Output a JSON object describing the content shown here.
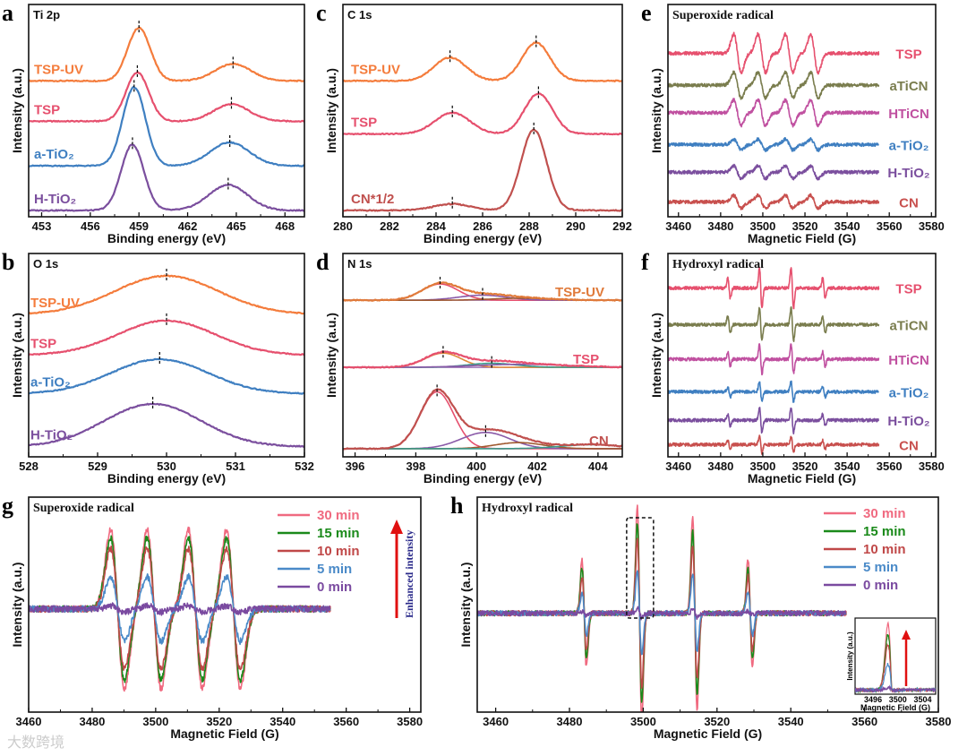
{
  "chart_data": [
    {
      "id": "a",
      "panel_label": "a",
      "type": "line",
      "title": "Ti 2p",
      "xlabel": "Binding energy (eV)",
      "ylabel": "Intensity (a.u.)",
      "xlim": [
        452.2,
        469.2
      ],
      "ylim": [
        0,
        100
      ],
      "xticks": [
        453,
        456,
        459,
        462,
        465,
        468
      ],
      "model": "xps",
      "series": [
        {
          "name": "TSP-UV",
          "color": "#f47c3c",
          "offset": 64,
          "peaks": [
            [
              459.0,
              25,
              0.7
            ],
            [
              464.8,
              8,
              1.1
            ]
          ]
        },
        {
          "name": "TSP",
          "color": "#e6506e",
          "offset": 45,
          "peaks": [
            [
              458.9,
              23,
              0.7
            ],
            [
              464.7,
              8,
              1.1
            ]
          ]
        },
        {
          "name": "a-TiO₂",
          "color": "#3f7fc1",
          "offset": 24,
          "peaks": [
            [
              458.7,
              37,
              0.7
            ],
            [
              464.6,
              11,
              1.2
            ]
          ]
        },
        {
          "name": "H-TiO₂",
          "color": "#7b4f9e",
          "offset": 3,
          "peaks": [
            [
              458.6,
              31,
              0.7
            ],
            [
              464.5,
              12,
              1.2
            ]
          ]
        }
      ]
    },
    {
      "id": "b",
      "panel_label": "b",
      "type": "line",
      "title": "O 1s",
      "xlabel": "Binding energy (eV)",
      "ylabel": "Intensity (a.u.)",
      "xlim": [
        528,
        532
      ],
      "ylim": [
        0,
        100
      ],
      "xticks": [
        528,
        529,
        530,
        531,
        532
      ],
      "model": "xps",
      "series": [
        {
          "name": "TSP-UV",
          "color": "#f47c3c",
          "offset": 70,
          "peaks": [
            [
              530.0,
              19,
              0.75
            ]
          ]
        },
        {
          "name": "TSP",
          "color": "#e6506e",
          "offset": 50,
          "peaks": [
            [
              530.0,
              17,
              0.7
            ]
          ]
        },
        {
          "name": "a-TiO₂",
          "color": "#3f7fc1",
          "offset": 31,
          "peaks": [
            [
              529.9,
              17,
              0.7
            ]
          ]
        },
        {
          "name": "H-TiO₂",
          "color": "#7b4f9e",
          "offset": 5,
          "peaks": [
            [
              529.8,
              21,
              0.7
            ]
          ]
        }
      ]
    },
    {
      "id": "c",
      "panel_label": "c",
      "type": "line",
      "title": "C 1s",
      "xlabel": "Binding energy (eV)",
      "ylabel": "Intensity (a.u.)",
      "xlim": [
        280,
        292
      ],
      "ylim": [
        0,
        100
      ],
      "xticks": [
        280,
        282,
        284,
        286,
        288,
        290,
        292
      ],
      "model": "xps",
      "series": [
        {
          "name": "TSP-UV",
          "color": "#f47c3c",
          "offset": 64,
          "peaks": [
            [
              284.6,
              11,
              0.7
            ],
            [
              288.3,
              18,
              0.6
            ]
          ]
        },
        {
          "name": "TSP",
          "color": "#e6506e",
          "offset": 39,
          "peaks": [
            [
              284.7,
              10,
              0.75
            ],
            [
              288.4,
              19,
              0.6
            ]
          ]
        },
        {
          "name": "CN*1/2",
          "color": "#c0504e",
          "offset": 3,
          "peaks": [
            [
              284.7,
              3,
              0.8
            ],
            [
              288.2,
              38,
              0.55
            ]
          ]
        }
      ]
    },
    {
      "id": "d",
      "panel_label": "d",
      "type": "line",
      "title": "N 1s",
      "xlabel": "Binding energy (eV)",
      "ylabel": "Intensity (a.u.)",
      "xlim": [
        395.6,
        404.8
      ],
      "ylim": [
        0,
        100
      ],
      "xticks": [
        396,
        398,
        400,
        402,
        404
      ],
      "model": "xps",
      "series": [
        {
          "name": "TSP-UV",
          "color": "#e07a3a",
          "offset": 77,
          "peaks": [
            [
              398.8,
              8,
              0.6
            ],
            [
              400.2,
              2.5,
              0.8
            ],
            [
              401.5,
              1,
              1
            ]
          ],
          "component_colors": [
            "#e6506e",
            "#8a5aa8",
            "#a05a30"
          ]
        },
        {
          "name": "TSP",
          "color": "#e6506e",
          "offset": 44,
          "peaks": [
            [
              398.9,
              7,
              0.6
            ],
            [
              400.5,
              2,
              0.8
            ],
            [
              401.5,
              1.5,
              1.5
            ]
          ],
          "component_colors": [
            "#e08a3a",
            "#3a9a8a",
            "#8a5aa8"
          ]
        },
        {
          "name": "CN",
          "color": "#c0504e",
          "offset": 4,
          "peaks": [
            [
              398.7,
              28,
              0.55
            ],
            [
              400.3,
              8,
              0.8
            ],
            [
              401.4,
              3,
              0.8
            ],
            [
              403.8,
              2,
              1
            ]
          ],
          "component_colors": [
            "#e6506e",
            "#8a5aa8",
            "#a05a30",
            "#3a9a8a"
          ]
        }
      ]
    },
    {
      "id": "e",
      "panel_label": "e",
      "type": "line",
      "title": "Superoxide radical",
      "xlabel": "Magnetic Field (G)",
      "ylabel": "Intensity (a.u.)",
      "xlim": [
        3455,
        3582
      ],
      "ylim": [
        0,
        100
      ],
      "xticks": [
        3460,
        3480,
        3500,
        3520,
        3540,
        3560,
        3580
      ],
      "model": "epr",
      "lines": [
        3488,
        3499.5,
        3512.5,
        3524.5
      ],
      "ratios": [
        1,
        1,
        1,
        1
      ],
      "width": 1.8,
      "data_range": [
        3455,
        3555
      ],
      "series": [
        {
          "name": "TSP",
          "color": "#e6506e",
          "offset": 77,
          "amp": 9
        },
        {
          "name": "aTiCN",
          "color": "#7a7d4e",
          "offset": 62,
          "amp": 6
        },
        {
          "name": "HTiCN",
          "color": "#c050a0",
          "offset": 49,
          "amp": 6
        },
        {
          "name": "a-TiO₂",
          "color": "#3f7fc1",
          "offset": 34,
          "amp": 2.5
        },
        {
          "name": "H-TiO₂",
          "color": "#7b4f9e",
          "offset": 21,
          "amp": 3
        },
        {
          "name": "CN",
          "color": "#c8504e",
          "offset": 7,
          "amp": 3
        }
      ]
    },
    {
      "id": "f",
      "panel_label": "f",
      "type": "line",
      "title": "Hydroxyl radical",
      "xlabel": "Magnetic Field (G)",
      "ylabel": "Intensity (a.u.)",
      "xlim": [
        3455,
        3582
      ],
      "ylim": [
        0,
        100
      ],
      "xticks": [
        3460,
        3480,
        3500,
        3520,
        3540,
        3560,
        3580
      ],
      "model": "epr",
      "lines": [
        3484,
        3499,
        3514,
        3529
      ],
      "ratios": [
        1,
        2,
        2,
        1
      ],
      "width": 0.6,
      "data_range": [
        3455,
        3555
      ],
      "series": [
        {
          "name": "TSP",
          "color": "#e6506e",
          "offset": 83,
          "amp": 5
        },
        {
          "name": "aTiCN",
          "color": "#7a7d4e",
          "offset": 65,
          "amp": 4
        },
        {
          "name": "HTiCN",
          "color": "#c050a0",
          "offset": 48,
          "amp": 3.5
        },
        {
          "name": "a-TiO₂",
          "color": "#3f7fc1",
          "offset": 32,
          "amp": 2.5
        },
        {
          "name": "H-TiO₂",
          "color": "#7b4f9e",
          "offset": 18,
          "amp": 3
        },
        {
          "name": "CN",
          "color": "#c8504e",
          "offset": 6,
          "amp": 2
        }
      ]
    },
    {
      "id": "g",
      "panel_label": "g",
      "type": "line",
      "title": "Superoxide radical",
      "xlabel": "Magnetic Field (G)",
      "ylabel": "Intensity (a.u.)",
      "xlim": [
        3460,
        3583.5
      ],
      "ylim": [
        0,
        100
      ],
      "xticks": [
        3460,
        3480,
        3500,
        3520,
        3540,
        3560,
        3580
      ],
      "model": "epr",
      "lines": [
        3488,
        3499.5,
        3512.5,
        3524.5
      ],
      "ratios": [
        1,
        1,
        1,
        1
      ],
      "width": 2.2,
      "data_range": [
        3455,
        3555
      ],
      "annotation": "Enhanced intensity",
      "legend": "top-right",
      "series": [
        {
          "name": "30 min",
          "color": "#f06a80",
          "offset": 48,
          "amp": 37
        },
        {
          "name": "15 min",
          "color": "#1a8a1a",
          "offset": 48,
          "amp": 33
        },
        {
          "name": "10 min",
          "color": "#c04848",
          "offset": 48,
          "amp": 28
        },
        {
          "name": "5 min",
          "color": "#4a8ac8",
          "offset": 48,
          "amp": 15
        },
        {
          "name": "0 min",
          "color": "#7a4aa0",
          "offset": 48,
          "amp": 1.5
        }
      ]
    },
    {
      "id": "h",
      "panel_label": "h",
      "type": "line",
      "title": "Hydroxyl radical",
      "xlabel": "Magnetic Field (G)",
      "ylabel": "Intensity (a.u.)",
      "xlim": [
        3455,
        3580
      ],
      "ylim": [
        0,
        100
      ],
      "xticks": [
        3460,
        3480,
        3500,
        3520,
        3540,
        3560,
        3580
      ],
      "model": "epr",
      "lines": [
        3484,
        3499,
        3514,
        3529
      ],
      "ratios": [
        1,
        2,
        1.8,
        1
      ],
      "width": 0.6,
      "data_range": [
        3455,
        3555
      ],
      "legend": "top-right",
      "series": [
        {
          "name": "30 min",
          "color": "#f06a80",
          "offset": 46,
          "amp": 25
        },
        {
          "name": "15 min",
          "color": "#1a8a1a",
          "offset": 46,
          "amp": 21
        },
        {
          "name": "10 min",
          "color": "#c04848",
          "offset": 46,
          "amp": 17
        },
        {
          "name": "5 min",
          "color": "#4a8ac8",
          "offset": 46,
          "amp": 10
        },
        {
          "name": "0 min",
          "color": "#7a4aa0",
          "offset": 46,
          "amp": 1
        }
      ],
      "inset": {
        "xlabel": "Magnetic Field (G)",
        "ylabel": "Intensity (a.u.)",
        "xlim": [
          3493.1,
          3506.1
        ],
        "xticks": [
          3496,
          3500,
          3504
        ]
      }
    }
  ],
  "watermark": "大数跨境"
}
